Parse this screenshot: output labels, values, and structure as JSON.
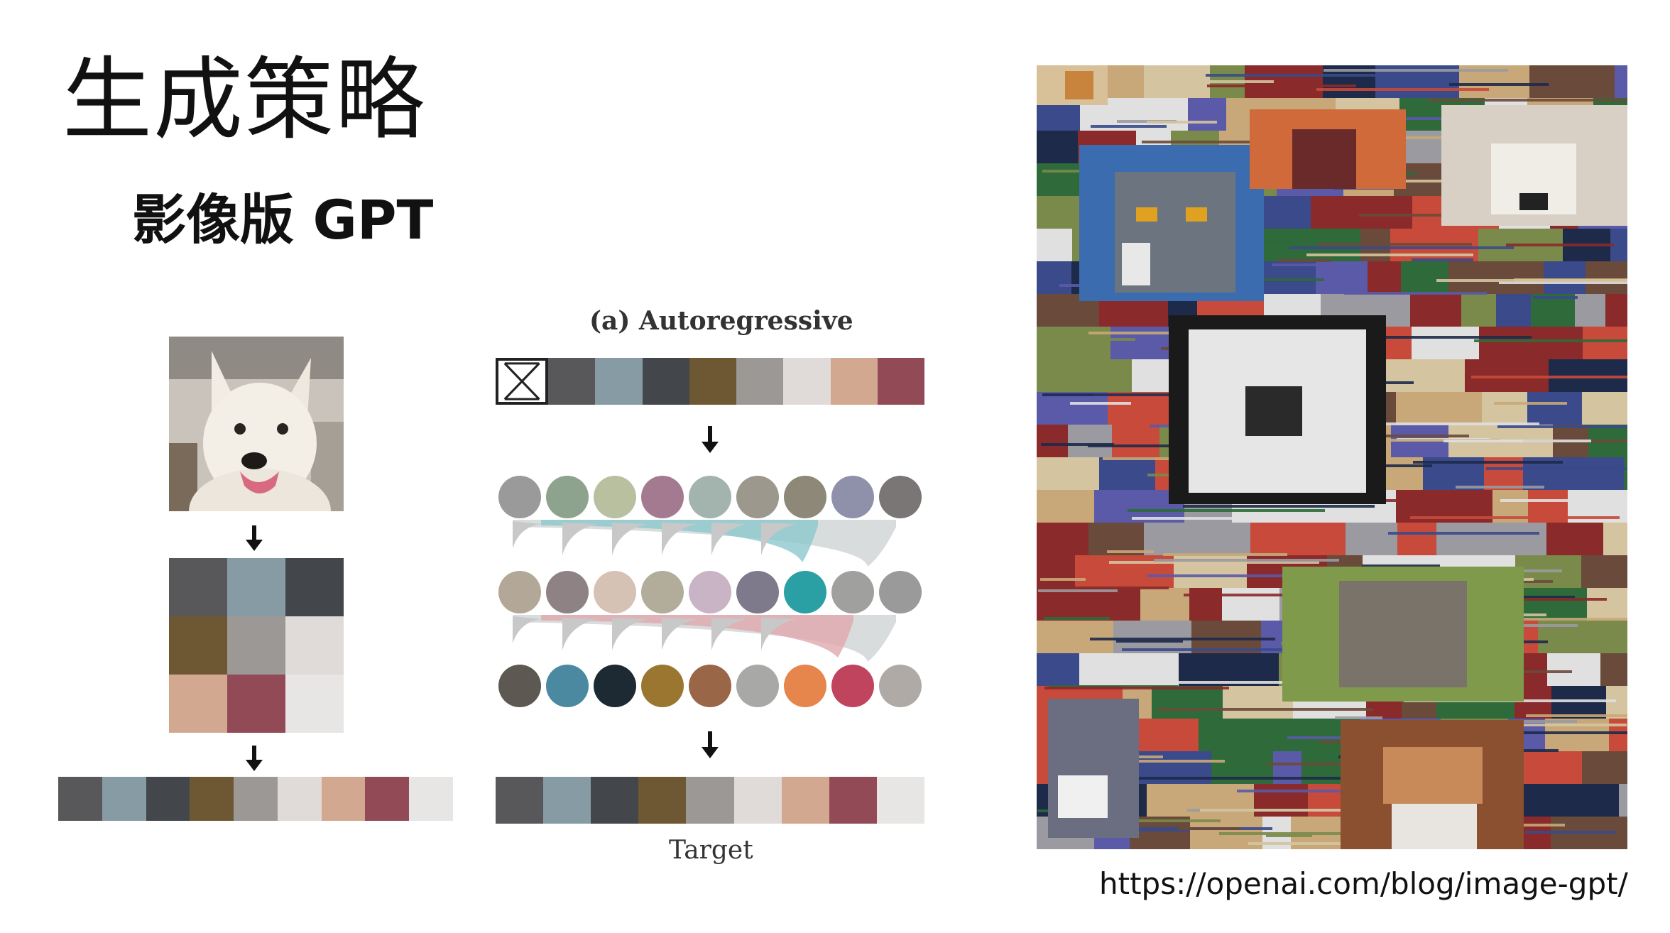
{
  "slide": {
    "title": "生成策略",
    "subtitle": "影像版 GPT",
    "url": "https://openai.com/blog/image-gpt/"
  },
  "diagram": {
    "panel_title": "(a) Autoregressive",
    "target_label": "Target",
    "grid_colors": [
      "#58585a",
      "#879ba4",
      "#43474b",
      "#6e5733",
      "#9b9896",
      "#e0dbd8",
      "#d2a891",
      "#934a57",
      "#e8e6e5"
    ],
    "sequence_colors": [
      "#58585a",
      "#879ba4",
      "#43474b",
      "#6e5733",
      "#9b9896",
      "#e0dbd8",
      "#d2a891",
      "#934a57",
      "#e8e6e5"
    ],
    "input_colors": [
      "#58585a",
      "#879ba4",
      "#43474b",
      "#6e5733",
      "#9b9896",
      "#e0dbd8",
      "#d2a891",
      "#934a57"
    ],
    "circle_rows": [
      [
        "#9a9a9a",
        "#8ea38e",
        "#b9c0a0",
        "#a47a90",
        "#a3b3ad",
        "#9c988e",
        "#8e8878",
        "#8f90aa",
        "#7a7676"
      ],
      [
        "#b3a898",
        "#8e8284",
        "#d6c2b4",
        "#b2ad9a",
        "#c8b4c4",
        "#7e7a8c",
        "#2aa0a4",
        "#a0a09e",
        "#9a9a9a"
      ],
      [
        "#5e5852",
        "#4a89a0",
        "#1e2a33",
        "#9a7630",
        "#9a6648",
        "#a8a8a6",
        "#e6864c",
        "#c0445e",
        "#b0aaa6"
      ]
    ]
  },
  "collage": {
    "palette": [
      "#3a4a8a",
      "#6a4a3a",
      "#c8a878",
      "#2e6a3a",
      "#8a2a2a",
      "#5a5aa8",
      "#d4c4a0",
      "#9a9aa0",
      "#c84a3a",
      "#1e2a4a",
      "#7a8a4a",
      "#e0e0e0"
    ]
  }
}
